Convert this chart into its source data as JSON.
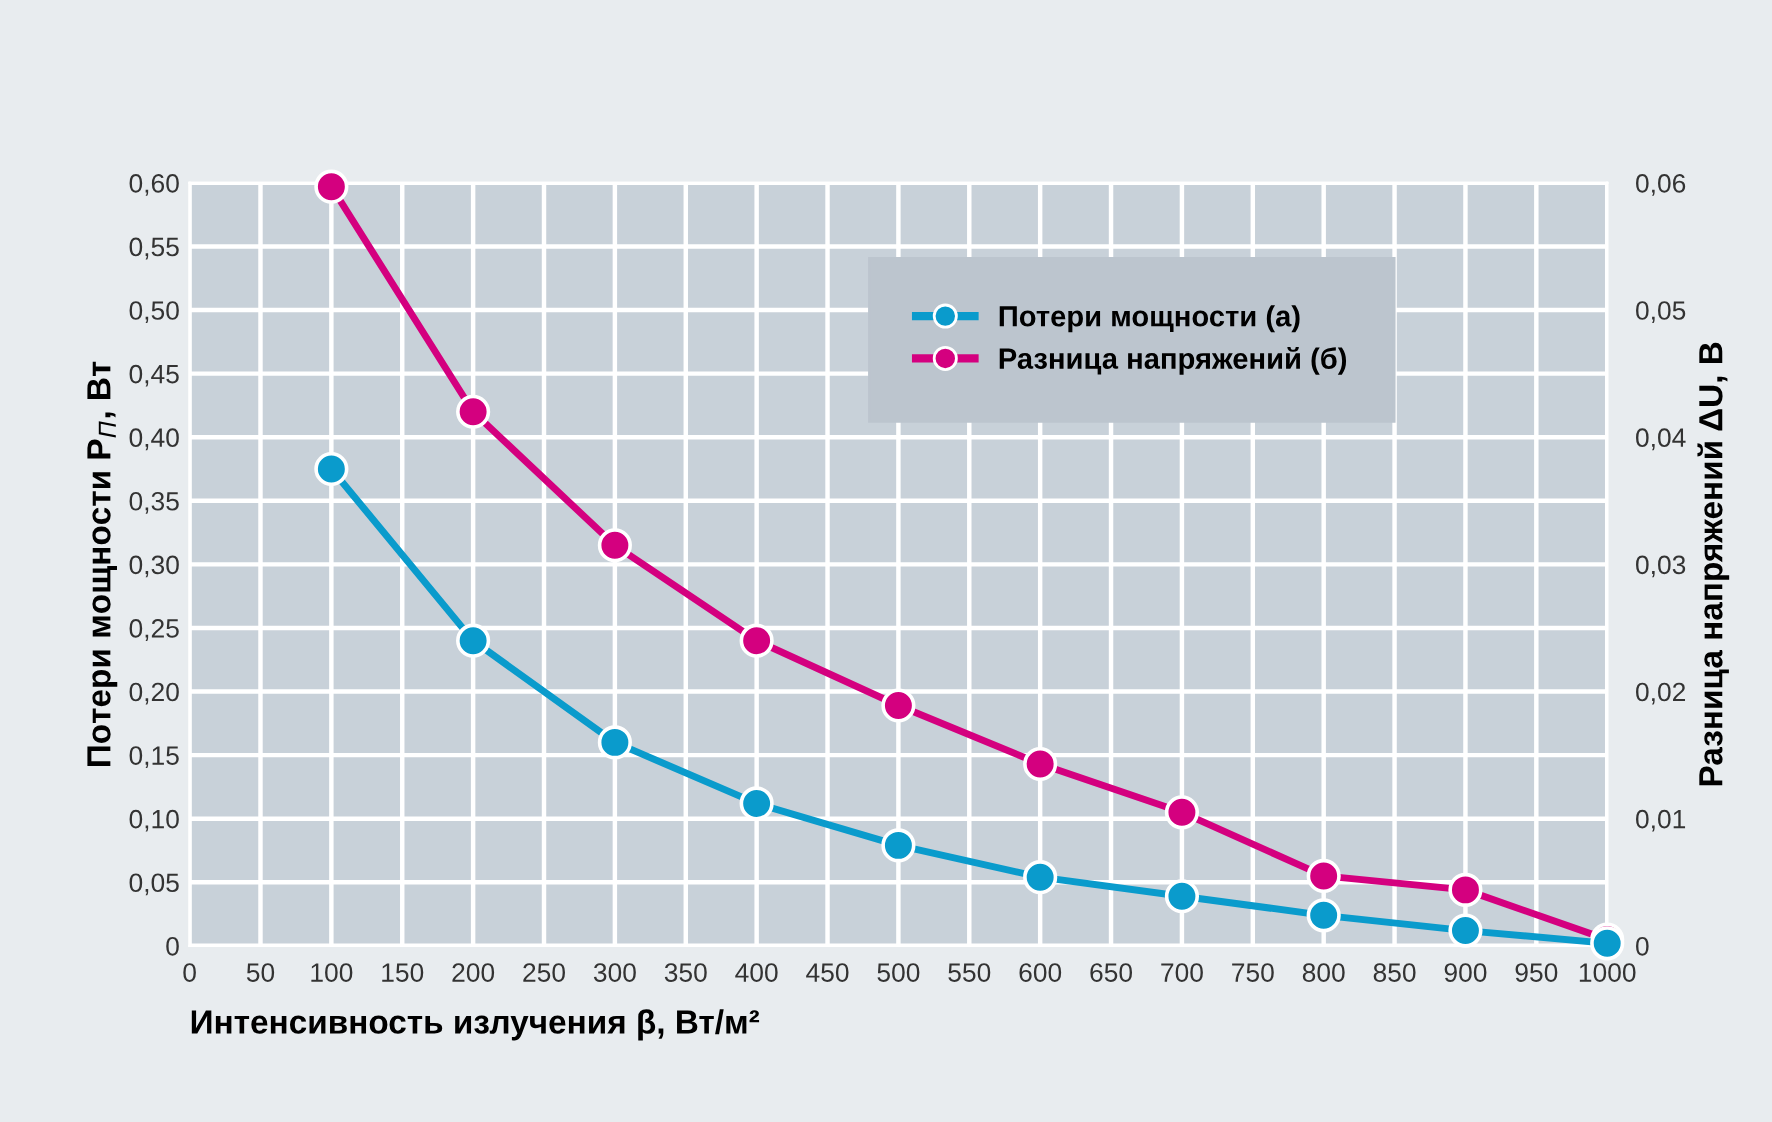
{
  "chart_data": {
    "type": "line",
    "xlabel": "Интенсивность излучения β, Вт/м²",
    "ylabel": "Потери мощности P$_{П}$, Вт",
    "y2label": "Разница напряжений ΔU, В",
    "x": [
      100,
      200,
      300,
      400,
      500,
      600,
      700,
      800,
      900,
      1000
    ],
    "series": [
      {
        "name": "Потери мощности (а)",
        "color": "#0a9bcc",
        "values": [
          0.375,
          0.24,
          0.16,
          0.112,
          0.079,
          0.054,
          0.039,
          0.024,
          0.012,
          0.002
        ]
      },
      {
        "name": "Разница напряжений (б)",
        "color": "#d4007f",
        "axis": "y2",
        "values": [
          0.0597,
          0.042,
          0.0315,
          0.024,
          0.0189,
          0.0143,
          0.0105,
          0.0055,
          0.0044,
          0.0005
        ]
      }
    ],
    "xlim": [
      0,
      1000
    ],
    "xticks": [
      0,
      50,
      100,
      150,
      200,
      250,
      300,
      350,
      400,
      450,
      500,
      550,
      600,
      650,
      700,
      750,
      800,
      850,
      900,
      950,
      1000
    ],
    "ylim": [
      0,
      0.6
    ],
    "yticks": [
      0,
      {
        "value": 0.05,
        "label": "0,05"
      },
      {
        "value": 0.1,
        "label": "0,10"
      },
      {
        "value": 0.15,
        "label": "0,15"
      },
      {
        "value": 0.2,
        "label": "0,20"
      },
      {
        "value": 0.25,
        "label": "0,25"
      },
      {
        "value": 0.3,
        "label": "0,30"
      },
      {
        "value": 0.35,
        "label": "0,35"
      },
      {
        "value": 0.4,
        "label": "0,40"
      },
      {
        "value": 0.45,
        "label": "0,45"
      },
      {
        "value": 0.5,
        "label": "0,50"
      },
      {
        "value": 0.55,
        "label": "0,55"
      },
      {
        "value": 0.6,
        "label": "0,60"
      }
    ],
    "y2lim": [
      0,
      0.06
    ],
    "y2ticks": [
      0,
      {
        "value": 0.01,
        "label": "0,01"
      },
      {
        "value": 0.02,
        "label": "0,02"
      },
      {
        "value": 0.03,
        "label": "0,03"
      },
      {
        "value": 0.04,
        "label": "0,04"
      },
      {
        "value": 0.05,
        "label": "0,05"
      },
      {
        "value": 0.06,
        "label": "0,06"
      }
    ],
    "grid": true,
    "legend": "top right",
    "marker": "circle",
    "line_style": "solid"
  }
}
